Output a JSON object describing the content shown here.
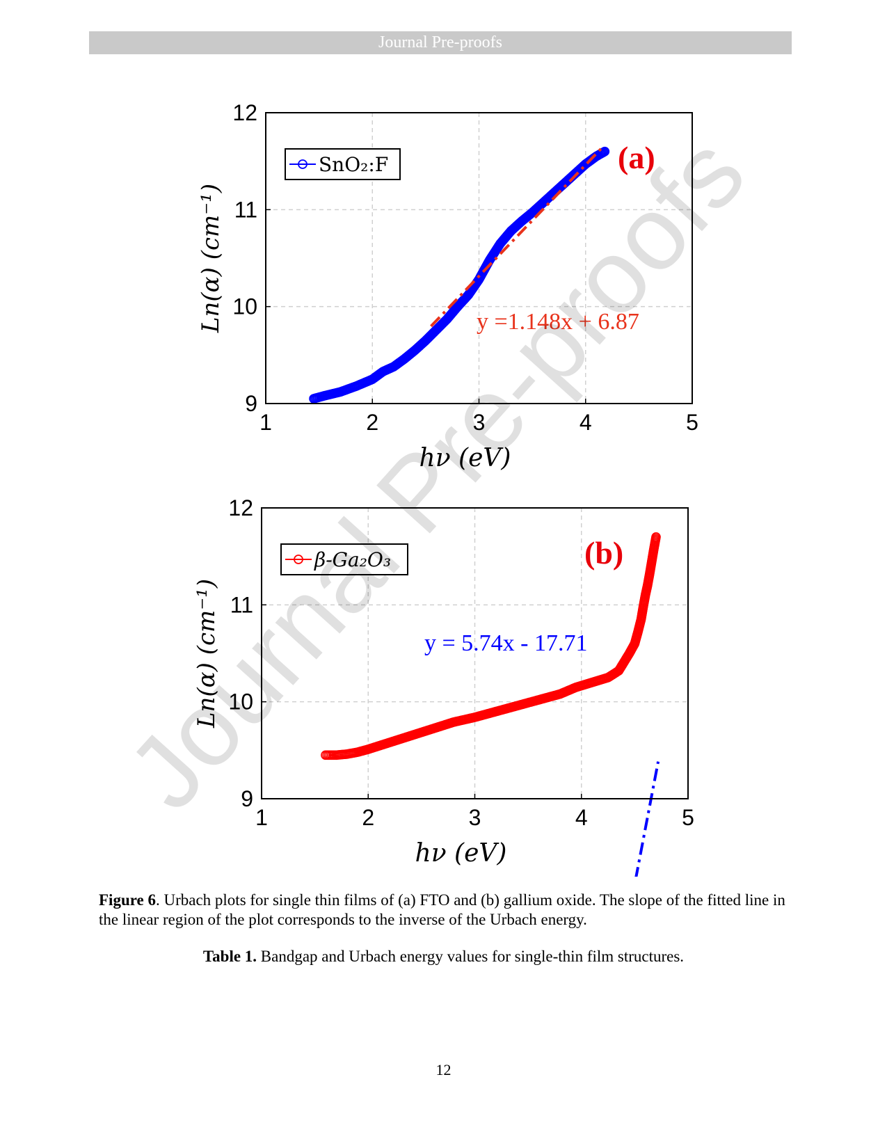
{
  "header": {
    "title": "Journal Pre-proofs"
  },
  "watermark": "Journal Pre-proofs",
  "chart_data": [
    {
      "type": "scatter",
      "panel_label": "(a)",
      "xlabel": "hν (eV)",
      "ylabel": "Ln(α) (cm⁻¹)",
      "xlim": [
        1,
        5
      ],
      "ylim": [
        9,
        12
      ],
      "xticks": [
        1,
        2,
        3,
        4,
        5
      ],
      "yticks": [
        9,
        10,
        11,
        12
      ],
      "grid": true,
      "legend_position": "top-left",
      "series": [
        {
          "name": "SnO₂:F",
          "color": "#0000ff",
          "x": [
            1.45,
            1.55,
            1.7,
            1.85,
            2.0,
            2.1,
            2.2,
            2.3,
            2.4,
            2.5,
            2.6,
            2.7,
            2.8,
            2.9,
            3.0,
            3.1,
            3.2,
            3.3,
            3.4,
            3.5,
            3.6,
            3.7,
            3.8,
            3.9,
            4.0,
            4.1,
            4.18
          ],
          "y": [
            9.05,
            9.08,
            9.12,
            9.18,
            9.25,
            9.33,
            9.38,
            9.46,
            9.55,
            9.65,
            9.76,
            9.87,
            10.0,
            10.12,
            10.28,
            10.48,
            10.65,
            10.78,
            10.88,
            10.97,
            11.07,
            11.17,
            11.27,
            11.37,
            11.47,
            11.55,
            11.6
          ]
        }
      ],
      "fit": {
        "label": "y =1.148x + 6.87",
        "color": "#e8331c",
        "slope": 1.148,
        "intercept": 6.87,
        "x_range": [
          2.55,
          4.15
        ]
      }
    },
    {
      "type": "scatter",
      "panel_label": "(b)",
      "xlabel": "hν (eV)",
      "ylabel": "Ln(α) (cm⁻¹)",
      "xlim": [
        1,
        5
      ],
      "ylim": [
        9,
        12
      ],
      "xticks": [
        1,
        2,
        3,
        4,
        5
      ],
      "yticks": [
        9,
        10,
        11,
        12
      ],
      "grid": true,
      "legend_position": "top-left",
      "series": [
        {
          "name": "β-Ga₂O₃",
          "color": "#ff0000",
          "x": [
            1.6,
            1.7,
            1.8,
            1.9,
            2.0,
            2.2,
            2.4,
            2.6,
            2.8,
            3.0,
            3.2,
            3.4,
            3.6,
            3.8,
            3.95,
            4.1,
            4.25,
            4.35,
            4.45,
            4.5,
            4.53,
            4.56,
            4.58,
            4.6,
            4.62,
            4.64,
            4.66,
            4.68,
            4.7
          ],
          "y": [
            9.45,
            9.45,
            9.46,
            9.48,
            9.51,
            9.58,
            9.65,
            9.72,
            9.79,
            9.84,
            9.9,
            9.96,
            10.02,
            10.08,
            10.15,
            10.2,
            10.25,
            10.32,
            10.5,
            10.6,
            10.72,
            10.85,
            10.98,
            11.1,
            11.2,
            11.32,
            11.45,
            11.58,
            11.7
          ]
        }
      ],
      "fit": {
        "label": "y = 5.74x - 17.71",
        "color": "#0000ff",
        "slope": 5.74,
        "intercept": -17.71,
        "x_range": [
          4.42,
          4.72
        ]
      }
    }
  ],
  "caption": {
    "figure_label": "Figure 6",
    "figure_text": ". Urbach plots for single thin films of (a) FTO and (b) gallium oxide. The slope of the fitted line in the linear region of the plot corresponds to the inverse of the Urbach energy."
  },
  "table_caption": {
    "label": "Table 1.",
    "text": " Bandgap and Urbach energy values for single-thin film structures."
  },
  "page_number": "12"
}
